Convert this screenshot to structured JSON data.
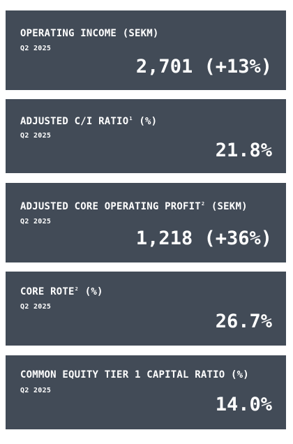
{
  "cards": [
    {
      "title": "OPERATING INCOME (SEKM)",
      "sup": "",
      "title_suffix": "",
      "period": "Q2 2025",
      "value": "2,701 (+13%)"
    },
    {
      "title": "ADJUSTED C/I RATIO",
      "sup": "1",
      "title_suffix": " (%)",
      "period": "Q2 2025",
      "value": "21.8%"
    },
    {
      "title": "ADJUSTED CORE OPERATING PROFIT",
      "sup": "2",
      "title_suffix": " (SEKM)",
      "period": "Q2 2025",
      "value": "1,218 (+36%)"
    },
    {
      "title": "CORE ROTE",
      "sup": "2",
      "title_suffix": " (%)",
      "period": "Q2 2025",
      "value": "26.7%"
    },
    {
      "title": "COMMON EQUITY TIER 1 CAPITAL RATIO (%)",
      "sup": "",
      "title_suffix": "",
      "period": "Q2 2025",
      "value": "14.0%"
    }
  ],
  "colors": {
    "card_background": "#424b57",
    "text": "#ffffff",
    "page_background": "#ffffff"
  }
}
